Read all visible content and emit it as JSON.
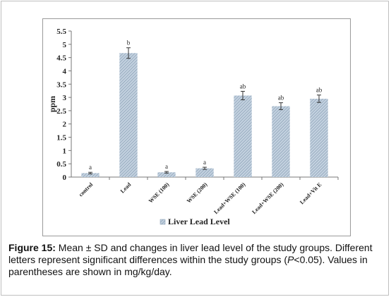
{
  "chart_data": {
    "type": "bar",
    "categories": [
      "control",
      "Lead",
      "WSE (100)",
      "WSE (200)",
      "Lead+WSE (100)",
      "Lead+WSE (200)",
      "Lead+Vit E"
    ],
    "series": [
      {
        "name": "Liver Lead Level",
        "values": [
          0.15,
          4.67,
          0.18,
          0.33,
          3.07,
          2.67,
          2.95
        ],
        "error": [
          0.03,
          0.2,
          0.03,
          0.04,
          0.16,
          0.13,
          0.14
        ],
        "significance": [
          "a",
          "b",
          "a",
          "a",
          "ab",
          "ab",
          "ab"
        ]
      }
    ],
    "ylabel": "ppm",
    "ylim": [
      0,
      5.5
    ],
    "yticks": [
      "0",
      "0.5",
      "1",
      "1.5",
      "2",
      "2.5",
      "3",
      "3.5",
      "4",
      "4.5",
      "5",
      "5.5"
    ],
    "legend_position": "bottom",
    "grid": false,
    "bar_color": "#9fb3c8"
  },
  "caption": {
    "label": "Figure 15:",
    "text": " Mean ± SD and changes in liver lead level of the study groups. Different letters represent significant differences within the study groups (",
    "p_symbol": "P",
    "text_end": "<0.05). Values in parentheses are shown in mg/kg/day."
  }
}
